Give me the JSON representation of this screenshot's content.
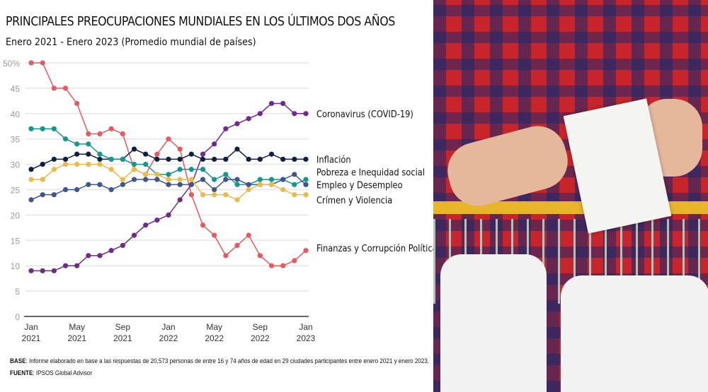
{
  "title": "PRINCIPALES PREOCUPACIONES MUNDIALES EN LOS ÚLTIMOS DOS AÑOS",
  "subtitle": "Enero 2021 - Enero 2023 (Promedio mundial de países)",
  "notes": {
    "base_label": "BASE",
    "base_text": ": Informe elaborado en base a las respuestas de 20,573 personas de entre 16 y 74 años de edad en 29 ciudades participantes entre enero 2021 y enero 2023.",
    "source_label": "FUENTE",
    "source_text": ": IPSOS Global Advisor"
  },
  "photo": {
    "description_icon": "shopping-receipt-photo"
  },
  "chart_data": {
    "type": "line",
    "title": "PRINCIPALES PREOCUPACIONES MUNDIALES EN LOS ÚLTIMOS DOS AÑOS",
    "x": [
      "2021-01",
      "2021-02",
      "2021-03",
      "2021-04",
      "2021-05",
      "2021-06",
      "2021-07",
      "2021-08",
      "2021-09",
      "2021-10",
      "2021-11",
      "2021-12",
      "2022-01",
      "2022-02",
      "2022-03",
      "2022-04",
      "2022-05",
      "2022-06",
      "2022-07",
      "2022-08",
      "2022-09",
      "2022-10",
      "2022-11",
      "2022-12",
      "2023-01"
    ],
    "x_ticks": [
      {
        "i": 0,
        "l1": "Jan",
        "l2": "2021"
      },
      {
        "i": 4,
        "l1": "May",
        "l2": "2021"
      },
      {
        "i": 8,
        "l1": "Sep",
        "l2": "2021"
      },
      {
        "i": 12,
        "l1": "Jan",
        "l2": "2022"
      },
      {
        "i": 16,
        "l1": "May",
        "l2": "2022"
      },
      {
        "i": 20,
        "l1": "Sep",
        "l2": "2022"
      },
      {
        "i": 24,
        "l1": "Jan",
        "l2": "2023"
      }
    ],
    "y_ticks": [
      "0",
      "5",
      "10",
      "15",
      "20",
      "25",
      "30",
      "35",
      "40",
      "45",
      "50%"
    ],
    "ylim": [
      0,
      50
    ],
    "grid": true,
    "legend": "right-end labels",
    "series": [
      {
        "name": "Coronavirus (COVID-19)",
        "color": "#e8585e",
        "values": [
          50,
          50,
          45,
          45,
          42,
          36,
          36,
          37,
          36,
          29,
          28,
          32,
          35,
          33,
          24,
          18,
          16,
          12,
          14,
          16,
          12,
          10,
          10,
          11,
          13
        ]
      },
      {
        "name": "Inflación",
        "color": "#6f2a8c",
        "values": [
          9,
          9,
          9,
          10,
          10,
          12,
          12,
          13,
          14,
          16,
          18,
          19,
          20,
          23,
          26,
          32,
          34,
          37,
          38,
          39,
          40,
          42,
          42,
          40,
          40
        ]
      },
      {
        "name": "Pobreza e Inequidad social",
        "color": "#0d1f45",
        "values": [
          29,
          30,
          31,
          31,
          32,
          32,
          31,
          31,
          31,
          33,
          32,
          31,
          31,
          31,
          32,
          31,
          31,
          31,
          33,
          31,
          31,
          32,
          31,
          31,
          31
        ]
      },
      {
        "name": "Empleo y Desempleo",
        "color": "#14978f",
        "values": [
          37,
          37,
          37,
          35,
          34,
          34,
          32,
          31,
          31,
          30,
          30,
          28,
          28,
          29,
          29,
          29,
          27,
          28,
          26,
          26,
          27,
          27,
          27,
          26,
          27
        ]
      },
      {
        "name": "Crímen y Violencia",
        "color": "#3e5590",
        "values": [
          23,
          24,
          24,
          25,
          25,
          26,
          26,
          25,
          26,
          27,
          27,
          27,
          26,
          26,
          26,
          27,
          25,
          27,
          27,
          26,
          26,
          26,
          27,
          28,
          26
        ]
      },
      {
        "name": "Finanzas y Corrupción Política",
        "color": "#ebbb4a",
        "values": [
          27,
          27,
          29,
          30,
          30,
          30,
          30,
          29,
          27,
          29,
          28,
          28,
          27,
          27,
          27,
          24,
          24,
          24,
          23,
          25,
          26,
          26,
          25,
          24,
          24
        ]
      }
    ],
    "label_y": [
      40,
      31,
      28.5,
      26,
      23,
      13.5
    ]
  }
}
